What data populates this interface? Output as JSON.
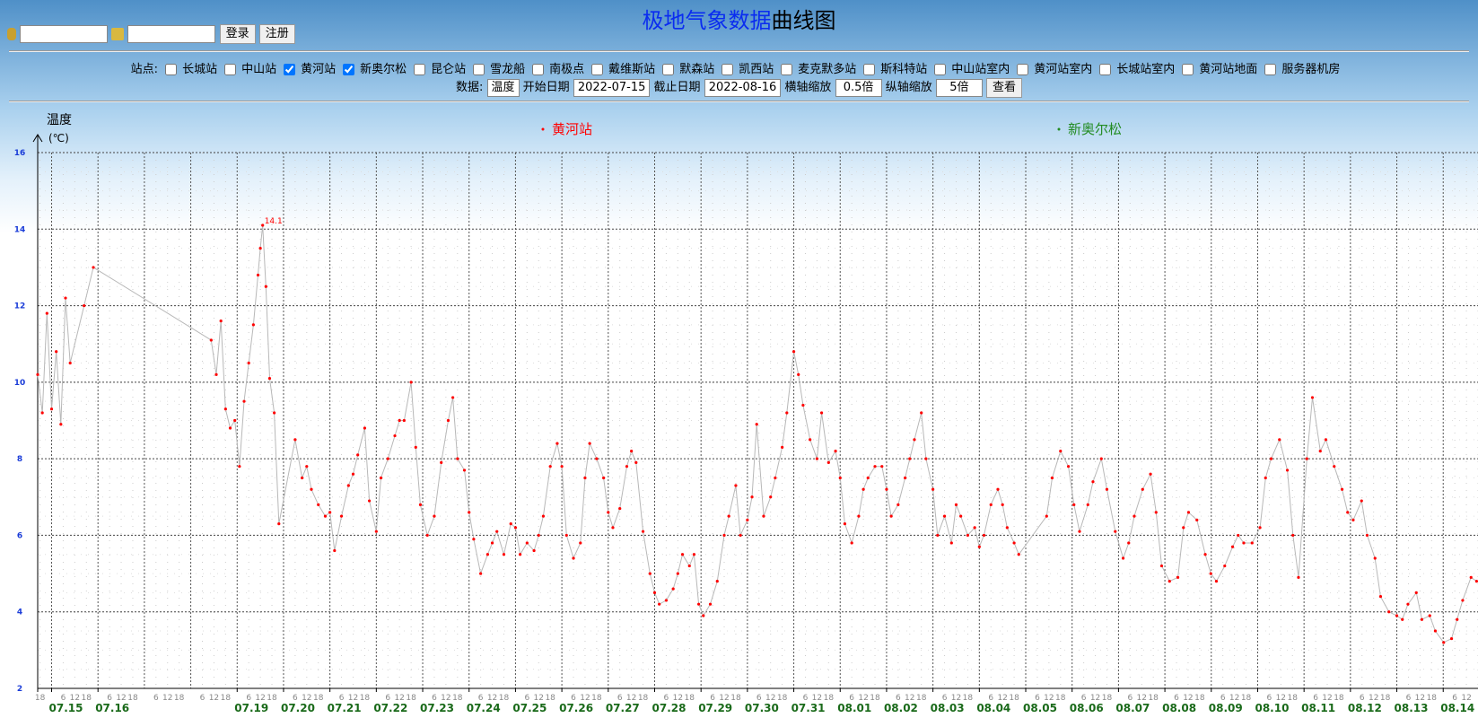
{
  "header": {
    "title_blue": "极地气象数据",
    "title_black": "曲线图",
    "login_button": "登录",
    "register_button": "注册"
  },
  "filters": {
    "station_label": "站点:",
    "stations": [
      {
        "name": "长城站",
        "checked": false
      },
      {
        "name": "中山站",
        "checked": false
      },
      {
        "name": "黄河站",
        "checked": true
      },
      {
        "name": "新奥尔松",
        "checked": true
      },
      {
        "name": "昆仑站",
        "checked": false
      },
      {
        "name": "雪龙船",
        "checked": false
      },
      {
        "name": "南极点",
        "checked": false
      },
      {
        "name": "戴维斯站",
        "checked": false
      },
      {
        "name": "默森站",
        "checked": false
      },
      {
        "name": "凯西站",
        "checked": false
      },
      {
        "name": "麦克默多站",
        "checked": false
      },
      {
        "name": "斯科特站",
        "checked": false
      },
      {
        "name": "中山站室内",
        "checked": false
      },
      {
        "name": "黄河站室内",
        "checked": false
      },
      {
        "name": "长城站室内",
        "checked": false
      },
      {
        "name": "黄河站地面",
        "checked": false
      },
      {
        "name": "服务器机房",
        "checked": false
      }
    ],
    "data_label": "数据:",
    "data_value": "温度",
    "start_label": "开始日期",
    "start_value": "2022-07-15",
    "end_label": "截止日期",
    "end_value": "2022-08-16",
    "xzoom_label": "横轴缩放",
    "xzoom_value": "0.5倍",
    "yzoom_label": "纵轴缩放",
    "yzoom_value": "5倍",
    "view_button": "查看"
  },
  "chart_data": {
    "type": "line",
    "y_label": "温度",
    "y_unit": "(℃)",
    "grid": true,
    "line_color": "#b8b8b8",
    "ylim": [
      2,
      16
    ],
    "yticks": [
      2,
      4,
      6,
      8,
      10,
      12,
      14,
      16
    ],
    "xlim": [
      -0.3,
      30.75
    ],
    "xticks": [
      {
        "value": 0,
        "label": "07.15"
      },
      {
        "value": 1,
        "label": "07.16"
      },
      {
        "value": 4,
        "label": "07.19"
      },
      {
        "value": 5,
        "label": "07.20"
      },
      {
        "value": 6,
        "label": "07.21"
      },
      {
        "value": 7,
        "label": "07.22"
      },
      {
        "value": 8,
        "label": "07.23"
      },
      {
        "value": 9,
        "label": "07.24"
      },
      {
        "value": 10,
        "label": "07.25"
      },
      {
        "value": 11,
        "label": "07.26"
      },
      {
        "value": 12,
        "label": "07.27"
      },
      {
        "value": 13,
        "label": "07.28"
      },
      {
        "value": 14,
        "label": "07.29"
      },
      {
        "value": 15,
        "label": "07.30"
      },
      {
        "value": 16,
        "label": "07.31"
      },
      {
        "value": 17,
        "label": "08.01"
      },
      {
        "value": 18,
        "label": "08.02"
      },
      {
        "value": 19,
        "label": "08.03"
      },
      {
        "value": 20,
        "label": "08.04"
      },
      {
        "value": 21,
        "label": "08.05"
      },
      {
        "value": 22,
        "label": "08.06"
      },
      {
        "value": 23,
        "label": "08.07"
      },
      {
        "value": 24,
        "label": "08.08"
      },
      {
        "value": 25,
        "label": "08.09"
      },
      {
        "value": 26,
        "label": "08.10"
      },
      {
        "value": 27,
        "label": "08.11"
      },
      {
        "value": 28,
        "label": "08.12"
      },
      {
        "value": 29,
        "label": "08.13"
      },
      {
        "value": 30,
        "label": "08.14"
      }
    ],
    "minor_xtick_labels": [
      "6",
      "12",
      "18"
    ],
    "series": [
      {
        "name": "黄河站",
        "color": "#ff0000",
        "x": [
          -0.3,
          -0.2,
          -0.1,
          0,
          0.1,
          0.2,
          0.3,
          0.4,
          0.7,
          0.9,
          3.44,
          3.55,
          3.65,
          3.75,
          3.85,
          3.95,
          4.05,
          4.15,
          4.25,
          4.35,
          4.45,
          4.5,
          4.55,
          4.62,
          4.7,
          4.8,
          4.9,
          5.25,
          5.4,
          5.5,
          5.6,
          5.75,
          5.9,
          6.0,
          6.1,
          6.25,
          6.4,
          6.5,
          6.6,
          6.75,
          6.85,
          7.0,
          7.1,
          7.25,
          7.4,
          7.5,
          7.6,
          7.75,
          7.85,
          7.95,
          8.1,
          8.25,
          8.4,
          8.55,
          8.65,
          8.75,
          8.9,
          9.0,
          9.1,
          9.25,
          9.4,
          9.5,
          9.6,
          9.75,
          9.9,
          10.0,
          10.1,
          10.25,
          10.4,
          10.5,
          10.6,
          10.75,
          10.9,
          11.0,
          11.1,
          11.25,
          11.4,
          11.5,
          11.6,
          11.75,
          11.9,
          12.0,
          12.1,
          12.25,
          12.4,
          12.5,
          12.6,
          12.75,
          12.9,
          13.0,
          13.1,
          13.25,
          13.4,
          13.5,
          13.6,
          13.75,
          13.85,
          13.95,
          14.05,
          14.2,
          14.35,
          14.5,
          14.6,
          14.75,
          14.85,
          15.0,
          15.1,
          15.2,
          15.35,
          15.5,
          15.6,
          15.75,
          15.85,
          16.0,
          16.1,
          16.2,
          16.35,
          16.5,
          16.6,
          16.75,
          16.9,
          17.0,
          17.1,
          17.25,
          17.4,
          17.5,
          17.6,
          17.75,
          17.9,
          18.0,
          18.1,
          18.25,
          18.4,
          18.5,
          18.6,
          18.75,
          18.85,
          19.0,
          19.1,
          19.25,
          19.4,
          19.5,
          19.6,
          19.75,
          19.9,
          20.0,
          20.1,
          20.25,
          20.4,
          20.5,
          20.6,
          20.75,
          20.85,
          21.45,
          21.57,
          21.75,
          21.92,
          22.04,
          22.16,
          22.34,
          22.45,
          22.63,
          22.75,
          22.93,
          23.1,
          23.22,
          23.34,
          23.52,
          23.69,
          23.81,
          23.93,
          24.1,
          24.28,
          24.4,
          24.51,
          24.69,
          24.87,
          24.99,
          25.11,
          25.29,
          25.46,
          25.58,
          25.7,
          25.88,
          26.05,
          26.17,
          26.29,
          26.47,
          26.64,
          26.76,
          26.88,
          27.06,
          27.18,
          27.35,
          27.47,
          27.65,
          27.82,
          27.94,
          28.06,
          28.24,
          28.36,
          28.53,
          28.65,
          28.83,
          29.0,
          29.12,
          29.24,
          29.42,
          29.54,
          29.71,
          29.83,
          30.01,
          30.18,
          30.3,
          30.42,
          30.6,
          30.72
        ],
        "values": [
          10.2,
          9.2,
          11.8,
          9.3,
          10.8,
          8.9,
          12.2,
          10.5,
          12.0,
          13.0,
          11.1,
          10.2,
          11.6,
          9.3,
          8.8,
          9.0,
          7.8,
          9.5,
          10.5,
          11.5,
          12.8,
          13.5,
          14.1,
          12.5,
          10.1,
          9.2,
          6.3,
          8.5,
          7.5,
          7.8,
          7.2,
          6.8,
          6.5,
          6.6,
          5.6,
          6.5,
          7.3,
          7.6,
          8.1,
          8.8,
          6.9,
          6.1,
          7.5,
          8.0,
          8.6,
          9.0,
          9.0,
          10.0,
          8.3,
          6.8,
          6.0,
          6.5,
          7.9,
          9.0,
          9.6,
          8.0,
          7.7,
          6.6,
          5.9,
          5.0,
          5.5,
          5.8,
          6.1,
          5.5,
          6.3,
          6.2,
          5.5,
          5.8,
          5.6,
          6.0,
          6.5,
          7.8,
          8.4,
          7.8,
          6.0,
          5.4,
          5.8,
          7.5,
          8.4,
          8.0,
          7.5,
          6.6,
          6.2,
          6.7,
          7.8,
          8.2,
          7.9,
          6.1,
          5.0,
          4.5,
          4.2,
          4.3,
          4.6,
          5.0,
          5.5,
          5.2,
          5.5,
          4.2,
          3.9,
          4.2,
          4.8,
          6.0,
          6.5,
          7.3,
          6.0,
          6.4,
          7.0,
          8.9,
          6.5,
          7.0,
          7.5,
          8.3,
          9.2,
          10.8,
          10.2,
          9.4,
          8.5,
          8.0,
          9.2,
          7.9,
          8.2,
          7.5,
          6.3,
          5.8,
          6.5,
          7.2,
          7.5,
          7.8,
          7.8,
          7.2,
          6.5,
          6.8,
          7.5,
          8.0,
          8.5,
          9.2,
          8.0,
          7.2,
          6.0,
          6.5,
          5.8,
          6.8,
          6.5,
          6.0,
          6.2,
          5.7,
          6.0,
          6.8,
          7.2,
          6.8,
          6.2,
          5.8,
          5.5,
          6.5,
          7.5,
          8.2,
          7.8,
          6.8,
          6.1,
          6.8,
          7.4,
          8.0,
          7.2,
          6.1,
          5.4,
          5.8,
          6.5,
          7.2,
          7.6,
          6.6,
          5.2,
          4.8,
          4.9,
          6.2,
          6.6,
          6.4,
          5.5,
          5.0,
          4.8,
          5.2,
          5.7,
          6.0,
          5.8,
          5.8,
          6.2,
          7.5,
          8.0,
          8.5,
          7.7,
          6.0,
          4.9,
          8.0,
          9.6,
          8.2,
          8.5,
          7.8,
          7.2,
          6.6,
          6.4,
          6.9,
          6.0,
          5.4,
          4.4,
          4.0,
          3.9,
          3.8,
          4.2,
          4.5,
          3.8,
          3.9,
          3.5,
          3.2,
          3.3,
          3.8,
          4.3,
          4.9,
          4.8
        ]
      },
      {
        "name": "新奥尔松",
        "color": "#228b22",
        "x": [],
        "values": []
      }
    ]
  }
}
